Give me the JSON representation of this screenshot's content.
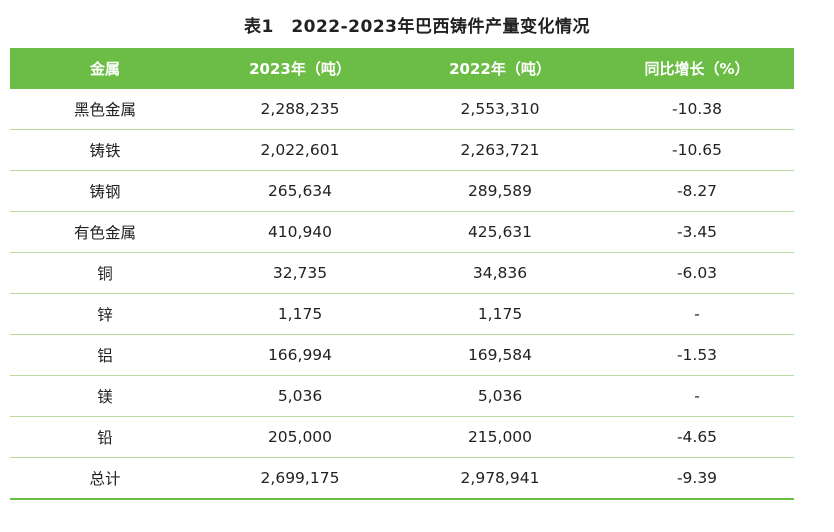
{
  "title": "表1　2022-2023年巴西铸件产量变化情况",
  "headers": [
    "金属",
    "2023年（吨）",
    "2022年（吨）",
    "同比增长（%）"
  ],
  "rows": [
    [
      "黑色金属",
      "2,288,235",
      "2,553,310",
      "-10.38"
    ],
    [
      "铸铁",
      "2,022,601",
      "2,263,721",
      "-10.65"
    ],
    [
      "铸钢",
      "265,634",
      "289,589",
      "-8.27"
    ],
    [
      "有色金属",
      "410,940",
      "425,631",
      "-3.45"
    ],
    [
      "铜",
      "32,735",
      "34,836",
      "-6.03"
    ],
    [
      "锌",
      "1,175",
      "1,175",
      "-"
    ],
    [
      "铝",
      "166,994",
      "169,584",
      "-1.53"
    ],
    [
      "镁",
      "5,036",
      "5,036",
      "-"
    ],
    [
      "铅",
      "205,000",
      "215,000",
      "-4.65"
    ],
    [
      "总计",
      "2,699,175",
      "2,978,941",
      "-9.39"
    ]
  ]
}
